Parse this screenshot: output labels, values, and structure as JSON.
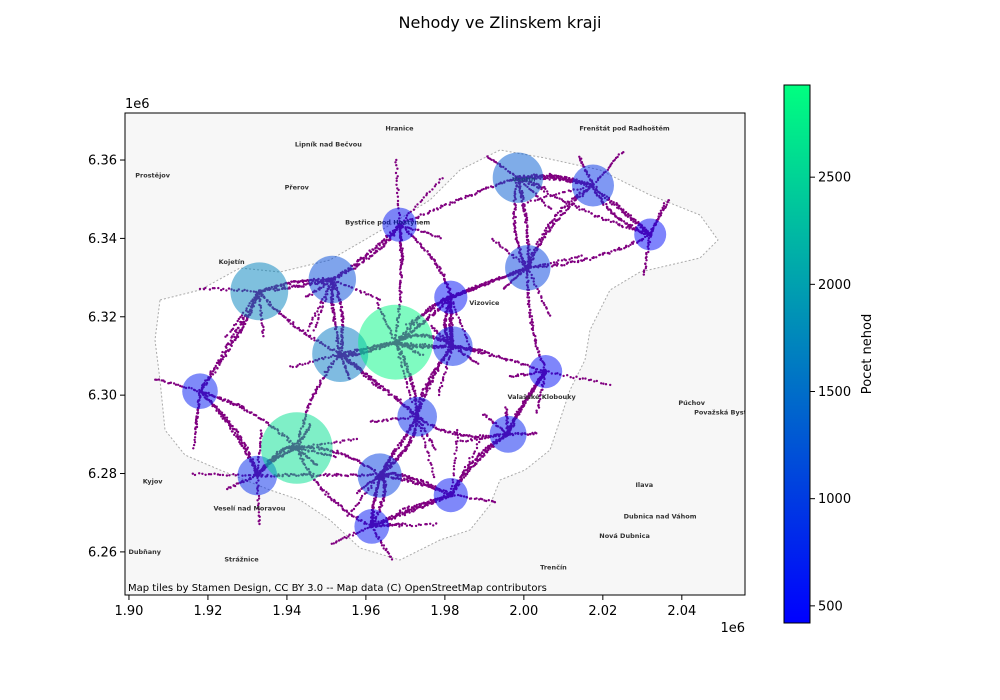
{
  "chart_data": {
    "type": "scatter",
    "title": "Nehody ve Zlinskem kraji",
    "xlabel": "",
    "ylabel": "",
    "x_offset_label": "1e6",
    "y_offset_label": "1e6",
    "xlim": [
      1.899,
      2.056
    ],
    "ylim": [
      6.249,
      6.372
    ],
    "x_ticks": [
      1.9,
      1.92,
      1.94,
      1.96,
      1.98,
      2.0,
      2.02,
      2.04
    ],
    "x_tick_labels": [
      "1.90",
      "1.92",
      "1.94",
      "1.96",
      "1.98",
      "2.00",
      "2.02",
      "2.04"
    ],
    "y_ticks": [
      6.26,
      6.28,
      6.3,
      6.32,
      6.34,
      6.36
    ],
    "y_tick_labels": [
      "6.26",
      "6.28",
      "6.30",
      "6.32",
      "6.34",
      "6.36"
    ],
    "colorbar": {
      "label": "Pocet nehod",
      "range": [
        420,
        2930
      ],
      "colormap": "winter",
      "ticks": [
        500,
        1000,
        1500,
        2000,
        2500
      ],
      "tick_labels": [
        "500",
        "1000",
        "1500",
        "2000",
        "2500"
      ]
    },
    "attribution": "Map tiles by Stamen Design, CC BY 3.0 -- Map data (C) OpenStreetMap contributors",
    "basemap_towns": [
      {
        "name": "Hranice",
        "x": 1.9685,
        "y": 6.3675
      },
      {
        "name": "Lipník nad Bečvou",
        "x": 1.9505,
        "y": 6.3635
      },
      {
        "name": "Frenštát pod Radhoštěm",
        "x": 2.0255,
        "y": 6.3675
      },
      {
        "name": "Prostějov",
        "x": 1.906,
        "y": 6.3555
      },
      {
        "name": "Přerov",
        "x": 1.9425,
        "y": 6.3525
      },
      {
        "name": "Bystřice pod Hostýnem",
        "x": 1.9655,
        "y": 6.3435
      },
      {
        "name": "Kojetín",
        "x": 1.926,
        "y": 6.3335
      },
      {
        "name": "Vsetín",
        "x": 2.0,
        "y": 6.3545
      },
      {
        "name": "Vizovice",
        "x": 1.99,
        "y": 6.323
      },
      {
        "name": "Valašské Klobouky",
        "x": 2.0045,
        "y": 6.299
      },
      {
        "name": "Púchov",
        "x": 2.0425,
        "y": 6.2975
      },
      {
        "name": "Považská Bystrica",
        "x": 2.0515,
        "y": 6.295
      },
      {
        "name": "Kyjov",
        "x": 1.906,
        "y": 6.2775
      },
      {
        "name": "Veselí nad Moravou",
        "x": 1.9305,
        "y": 6.2705
      },
      {
        "name": "Ilava",
        "x": 2.0305,
        "y": 6.2765
      },
      {
        "name": "Dubnica nad Váhom",
        "x": 2.0345,
        "y": 6.2685
      },
      {
        "name": "Nová Dubnica",
        "x": 2.0255,
        "y": 6.2635
      },
      {
        "name": "Dubňany",
        "x": 1.904,
        "y": 6.2595
      },
      {
        "name": "Strážnice",
        "x": 1.9285,
        "y": 6.2575
      },
      {
        "name": "Trenčín",
        "x": 2.0075,
        "y": 6.2555
      }
    ],
    "series": [
      {
        "name": "",
        "x": [
          1.933,
          1.9515,
          1.9535,
          1.9675,
          1.9425,
          1.9985,
          2.001,
          2.0175,
          1.9685,
          2.032,
          1.9815,
          1.982,
          1.973,
          1.918,
          1.996,
          2.0055,
          1.9635,
          1.9325,
          1.9815,
          1.9615
        ],
        "y": [
          6.3265,
          6.3295,
          6.3105,
          6.3135,
          6.2865,
          6.3555,
          6.3325,
          6.3535,
          6.3435,
          6.341,
          6.325,
          6.3125,
          6.2945,
          6.301,
          6.29,
          6.306,
          6.2795,
          6.2795,
          6.2745,
          6.2665
        ],
        "values": [
          1700,
          1150,
          1600,
          2850,
          2620,
          1300,
          1050,
          900,
          600,
          520,
          560,
          800,
          800,
          650,
          700,
          560,
          1000,
          800,
          600,
          620
        ]
      }
    ],
    "road_network": {
      "description_color": "#800080"
    }
  }
}
